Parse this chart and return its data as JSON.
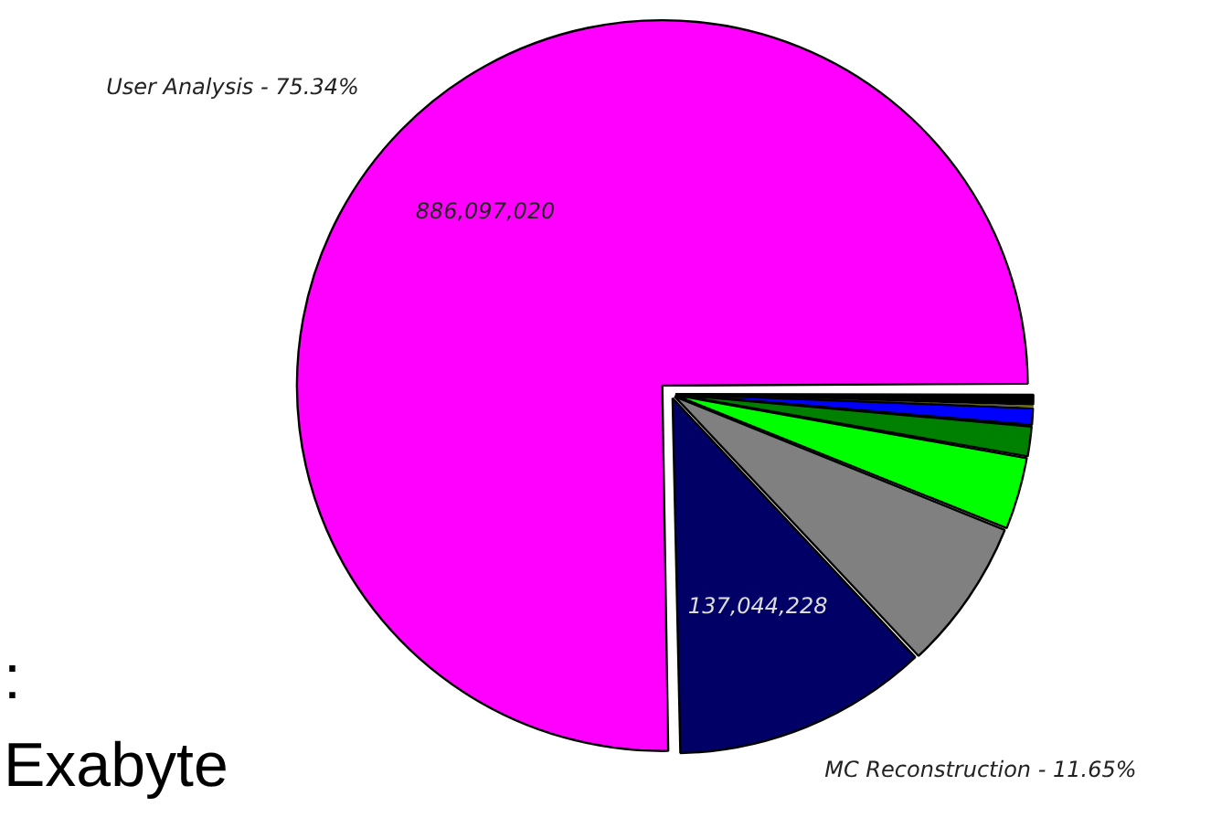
{
  "chart_data": {
    "type": "pie",
    "categories": [
      "User Analysis - 75.34%",
      "MC Reconstruction - 11.65%",
      null,
      null,
      null,
      null,
      null,
      null
    ],
    "values": [
      886097020,
      137044228,
      81270600,
      38812300,
      16465800,
      9409000,
      1176000,
      5880700
    ],
    "colors": [
      "#ff00ff",
      "#000066",
      "#808080",
      "#00ff00",
      "#008000",
      "#0000ff",
      "#ffff00",
      "#000000"
    ],
    "value_labels": [
      "886,097,020",
      "137,044,228",
      null,
      null,
      null,
      null,
      null,
      null
    ],
    "annotations": [
      ":",
      "Exabyte"
    ],
    "legend": false
  }
}
